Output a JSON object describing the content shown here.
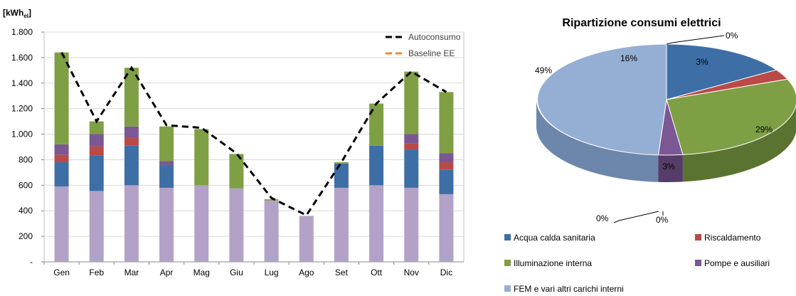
{
  "chart_data": [
    {
      "type": "bar",
      "stacked": true,
      "unit_label_main": "[kWh",
      "unit_label_sub": "el",
      "unit_label_close": "]",
      "categories": [
        "Gen",
        "Feb",
        "Mar",
        "Apr",
        "Mag",
        "Giu",
        "Lug",
        "Ago",
        "Set",
        "Ott",
        "Nov",
        "Dic"
      ],
      "ylim": [
        0,
        1800
      ],
      "yticks": [
        {
          "value": 0,
          "label": "-"
        },
        {
          "value": 200,
          "label": "200"
        },
        {
          "value": 400,
          "label": "400"
        },
        {
          "value": 600,
          "label": "600"
        },
        {
          "value": 800,
          "label": "800"
        },
        {
          "value": 1000,
          "label": "1.000"
        },
        {
          "value": 1200,
          "label": "1.200"
        },
        {
          "value": 1400,
          "label": "1.400"
        },
        {
          "value": 1600,
          "label": "1.600"
        },
        {
          "value": 1800,
          "label": "1.800"
        }
      ],
      "grid": true,
      "series": [
        {
          "key": "fem",
          "color": "#b3a2c7",
          "values": [
            590,
            555,
            600,
            580,
            600,
            575,
            480,
            360,
            580,
            600,
            580,
            530
          ]
        },
        {
          "key": "acqua",
          "color": "#3e6ea6",
          "values": [
            190,
            280,
            310,
            180,
            0,
            0,
            0,
            0,
            190,
            310,
            300,
            190
          ]
        },
        {
          "key": "riscaldamento",
          "color": "#b94a48",
          "values": [
            60,
            70,
            60,
            0,
            0,
            0,
            0,
            0,
            0,
            0,
            50,
            60
          ]
        },
        {
          "key": "pompe",
          "color": "#7b5794",
          "values": [
            80,
            95,
            90,
            30,
            0,
            0,
            0,
            0,
            0,
            0,
            70,
            70
          ]
        },
        {
          "key": "illuminazione",
          "color": "#7f9f45",
          "values": [
            720,
            100,
            460,
            270,
            440,
            270,
            10,
            0,
            10,
            330,
            490,
            480
          ]
        }
      ],
      "lines": [
        {
          "name": "Autoconsumo",
          "color": "#000000",
          "dash": true,
          "values": [
            1640,
            1100,
            1520,
            1070,
            1050,
            850,
            500,
            365,
            780,
            1240,
            1490,
            1330
          ]
        },
        {
          "name": "Baseline EE",
          "color": "#f08a2a",
          "dash": true,
          "values": [
            1640,
            1100,
            1520,
            1070,
            1050,
            850,
            500,
            365,
            780,
            1240,
            1490,
            1330
          ]
        }
      ],
      "legend_position": "top-right"
    },
    {
      "type": "pie",
      "title": "Ripartizione consumi elettrici",
      "slices": [
        {
          "name": "Acqua calda sanitaria",
          "value": 16,
          "label": "16%",
          "color": "#3e6ea6",
          "side": "#2c5282"
        },
        {
          "name": "Riscaldamento",
          "value": 3,
          "label": "3%",
          "color": "#b94a48",
          "side": "#8a3533"
        },
        {
          "name": "Illuminazione interna",
          "value": 29,
          "label": "29%",
          "color": "#7f9f45",
          "side": "#5b7330"
        },
        {
          "name": "Pompe e ausiliari",
          "value": 3,
          "label": "3%",
          "color": "#7b5794",
          "side": "#563d69"
        },
        {
          "name": "FEM e vari altri carichi interni",
          "value": 49,
          "label": "49%",
          "color": "#95aed3",
          "side": "#6d86ab"
        }
      ],
      "zero_labels": [
        "0%",
        "0%",
        "0%"
      ],
      "legend_position": "bottom"
    }
  ]
}
